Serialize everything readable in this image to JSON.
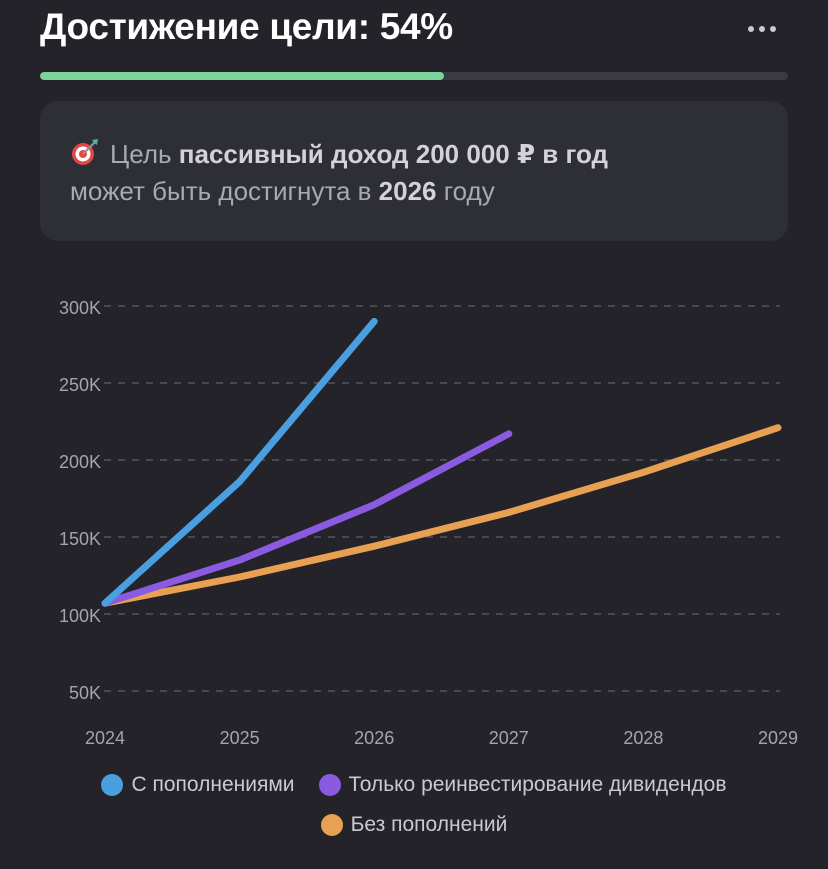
{
  "header": {
    "title": "Достижение цели: 54%",
    "more_icon": "more-horizontal-icon"
  },
  "progress": {
    "percent": 54,
    "fill_color": "#7bd39b",
    "track_color": "#3a3a42"
  },
  "goal_card": {
    "icon": "target-dart-icon",
    "line1_prefix": "Цель",
    "line1_bold": "пассивный доход 200 000 ₽ в год",
    "line2_prefix": "может быть достигнута в",
    "line2_bold": "2026",
    "line2_suffix": "году"
  },
  "chart_data": {
    "type": "line",
    "x": [
      2024,
      2025,
      2026,
      2027,
      2028,
      2029
    ],
    "x_tick_labels": [
      "2024",
      "2025",
      "2026",
      "2027",
      "2028",
      "2029"
    ],
    "y_ticks": [
      50000,
      100000,
      150000,
      200000,
      250000,
      300000
    ],
    "y_tick_labels": [
      "50K",
      "100K",
      "150K",
      "200K",
      "250K",
      "300K"
    ],
    "ylim": [
      50000,
      300000
    ],
    "grid": "horizontal-dashed",
    "legend_position": "bottom",
    "series": [
      {
        "name": "С пополнениями",
        "color": "#4a9fe0",
        "x": [
          2024,
          2025,
          2026
        ],
        "values": [
          107000,
          186000,
          290000
        ]
      },
      {
        "name": "Только реинвестирование дивидендов",
        "color": "#8a5be0",
        "x": [
          2024,
          2025,
          2026,
          2027
        ],
        "values": [
          107000,
          135000,
          171000,
          217000
        ]
      },
      {
        "name": "Без пополнений",
        "color": "#e8a053",
        "x": [
          2024,
          2025,
          2026,
          2027,
          2028,
          2029
        ],
        "values": [
          107000,
          124000,
          144000,
          166000,
          192000,
          221000
        ]
      }
    ]
  }
}
